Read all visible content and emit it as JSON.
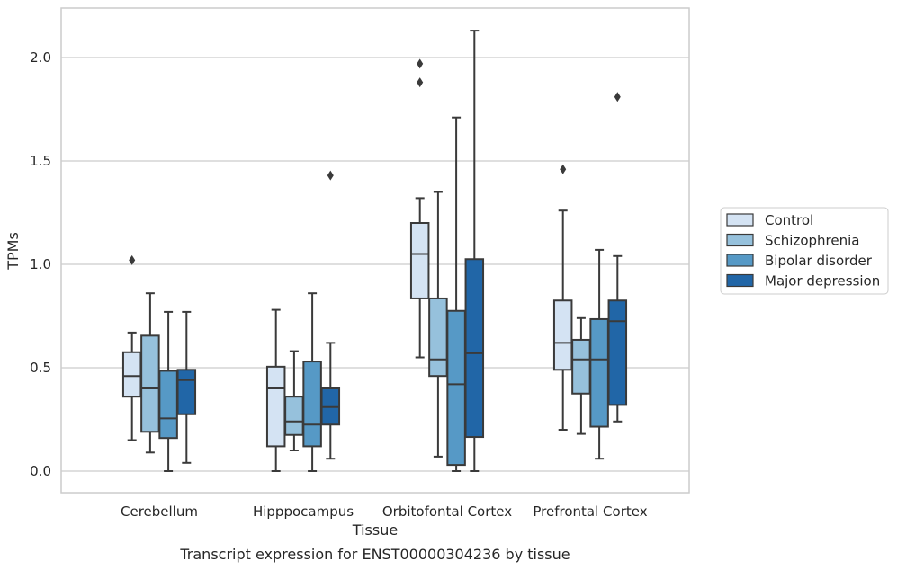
{
  "chart_data": {
    "type": "box",
    "title": "",
    "xlabel": "Tissue",
    "ylabel": "TPMs",
    "caption": "Transcript expression for ENST00000304236 by tissue",
    "categories": [
      "Cerebellum",
      "Hipppocampus",
      "Orbitofontal Cortex",
      "Prefrontal Cortex"
    ],
    "ylim": [
      -0.1,
      2.25
    ],
    "yticks": [
      "0.0",
      "0.5",
      "1.0",
      "1.5",
      "2.0"
    ],
    "ytick_values": [
      0.0,
      0.5,
      1.0,
      1.5,
      2.0
    ],
    "grid": "horizontal",
    "legend_position": "right",
    "series": [
      {
        "name": "Control",
        "color": "#d4e3f3",
        "boxes": [
          {
            "whislo": 0.15,
            "q1": 0.36,
            "med": 0.46,
            "q3": 0.575,
            "whishi": 0.67,
            "fliers": [
              1.02
            ]
          },
          {
            "whislo": 0.0,
            "q1": 0.12,
            "med": 0.4,
            "q3": 0.505,
            "whishi": 0.78,
            "fliers": []
          },
          {
            "whislo": 0.55,
            "q1": 0.835,
            "med": 1.05,
            "q3": 1.2,
            "whishi": 1.32,
            "fliers": [
              1.88,
              1.97
            ]
          },
          {
            "whislo": 0.2,
            "q1": 0.49,
            "med": 0.62,
            "q3": 0.825,
            "whishi": 1.26,
            "fliers": [
              1.46
            ]
          }
        ]
      },
      {
        "name": "Schizophrenia",
        "color": "#96c1dc",
        "boxes": [
          {
            "whislo": 0.09,
            "q1": 0.19,
            "med": 0.4,
            "q3": 0.655,
            "whishi": 0.86,
            "fliers": []
          },
          {
            "whislo": 0.1,
            "q1": 0.175,
            "med": 0.24,
            "q3": 0.36,
            "whishi": 0.58,
            "fliers": []
          },
          {
            "whislo": 0.07,
            "q1": 0.46,
            "med": 0.54,
            "q3": 0.835,
            "whishi": 1.35,
            "fliers": []
          },
          {
            "whislo": 0.18,
            "q1": 0.375,
            "med": 0.54,
            "q3": 0.635,
            "whishi": 0.74,
            "fliers": []
          }
        ]
      },
      {
        "name": "Bipolar disorder",
        "color": "#5699c6",
        "boxes": [
          {
            "whislo": 0.0,
            "q1": 0.16,
            "med": 0.255,
            "q3": 0.485,
            "whishi": 0.77,
            "fliers": []
          },
          {
            "whislo": 0.0,
            "q1": 0.12,
            "med": 0.225,
            "q3": 0.53,
            "whishi": 0.86,
            "fliers": []
          },
          {
            "whislo": 0.0,
            "q1": 0.03,
            "med": 0.42,
            "q3": 0.775,
            "whishi": 1.71,
            "fliers": []
          },
          {
            "whislo": 0.06,
            "q1": 0.215,
            "med": 0.54,
            "q3": 0.735,
            "whishi": 1.07,
            "fliers": []
          }
        ]
      },
      {
        "name": "Major depression",
        "color": "#2166a7",
        "boxes": [
          {
            "whislo": 0.04,
            "q1": 0.275,
            "med": 0.44,
            "q3": 0.49,
            "whishi": 0.77,
            "fliers": []
          },
          {
            "whislo": 0.06,
            "q1": 0.225,
            "med": 0.31,
            "q3": 0.4,
            "whishi": 0.62,
            "fliers": [
              1.43
            ]
          },
          {
            "whislo": 0.0,
            "q1": 0.165,
            "med": 0.57,
            "q3": 1.025,
            "whishi": 2.13,
            "fliers": []
          },
          {
            "whislo": 0.24,
            "q1": 0.32,
            "med": 0.725,
            "q3": 0.825,
            "whishi": 1.04,
            "fliers": [
              1.81
            ]
          }
        ]
      }
    ]
  }
}
